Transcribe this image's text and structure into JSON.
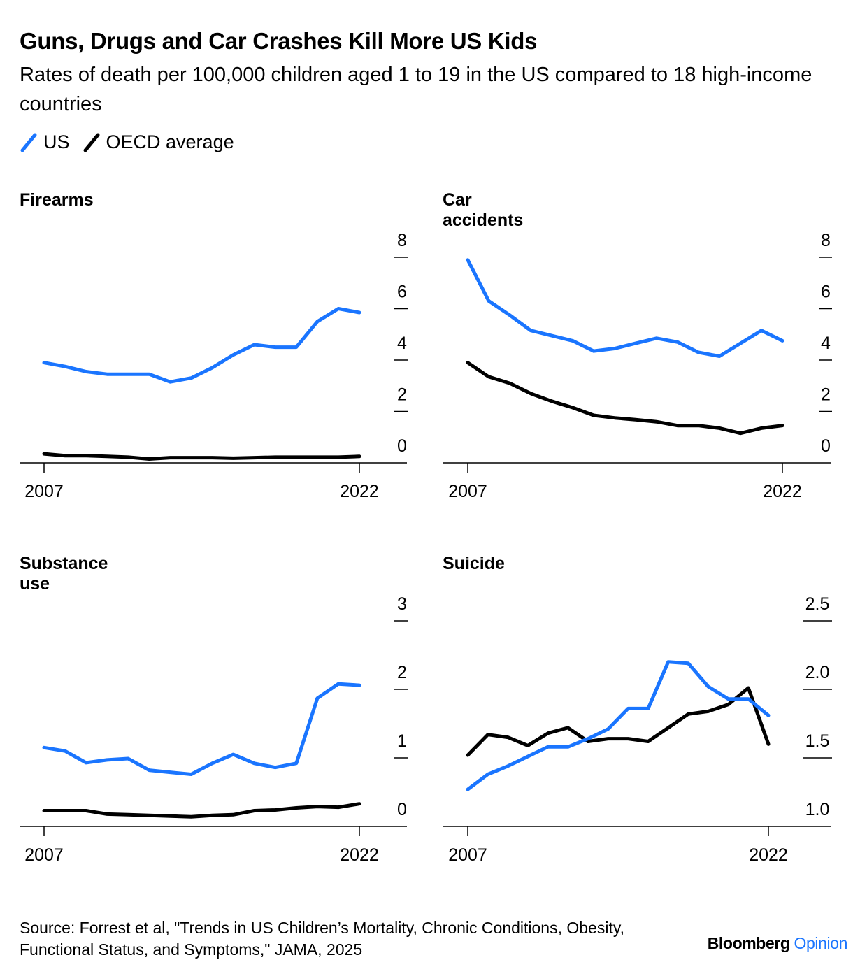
{
  "title": "Guns, Drugs and Car Crashes Kill More US Kids",
  "subtitle": "Rates of death per 100,000 children aged 1 to 19 in the US compared to 18 high-income countries",
  "legend": [
    {
      "label": "US",
      "color": "#1a75ff"
    },
    {
      "label": "OECD average",
      "color": "#000000"
    }
  ],
  "source": "Source: Forrest et al, \"Trends in US Children’s Mortality, Chronic Conditions, Obesity, Functional Status, and Symptoms,\" JAMA, 2025",
  "brand": {
    "name": "Bloomberg",
    "suffix": "Opinion"
  },
  "chart_data": [
    {
      "type": "line",
      "title": "Firearms",
      "x": [
        2007,
        2008,
        2009,
        2010,
        2011,
        2012,
        2013,
        2014,
        2015,
        2016,
        2017,
        2018,
        2019,
        2020,
        2021,
        2022
      ],
      "ylim": [
        0,
        8
      ],
      "yticks": [
        "0",
        "2",
        "4",
        "6",
        "8"
      ],
      "ytick_values": [
        0,
        2,
        4,
        6,
        8
      ],
      "xtick_labels": [
        "2007",
        "2022"
      ],
      "series": [
        {
          "name": "US",
          "color": "#1a75ff",
          "values": [
            3.9,
            3.75,
            3.55,
            3.45,
            3.45,
            3.45,
            3.15,
            3.3,
            3.7,
            4.2,
            4.6,
            4.5,
            4.5,
            5.5,
            6.0,
            5.85
          ]
        },
        {
          "name": "OECD average",
          "color": "#000000",
          "values": [
            0.35,
            0.28,
            0.28,
            0.25,
            0.22,
            0.15,
            0.2,
            0.2,
            0.2,
            0.18,
            0.2,
            0.22,
            0.22,
            0.22,
            0.22,
            0.25
          ]
        }
      ]
    },
    {
      "type": "line",
      "title": "Car accidents",
      "x": [
        2007,
        2008,
        2009,
        2010,
        2011,
        2012,
        2013,
        2014,
        2015,
        2016,
        2017,
        2018,
        2019,
        2020,
        2021,
        2022
      ],
      "ylim": [
        0,
        8
      ],
      "yticks": [
        "0",
        "2",
        "4",
        "6",
        "8"
      ],
      "ytick_values": [
        0,
        2,
        4,
        6,
        8
      ],
      "xtick_labels": [
        "2007",
        "2022"
      ],
      "series": [
        {
          "name": "US",
          "color": "#1a75ff",
          "values": [
            7.9,
            6.3,
            5.75,
            5.15,
            4.95,
            4.75,
            4.35,
            4.45,
            4.65,
            4.85,
            4.7,
            4.3,
            4.15,
            4.65,
            5.15,
            4.75
          ]
        },
        {
          "name": "OECD average",
          "color": "#000000",
          "values": [
            3.9,
            3.35,
            3.1,
            2.7,
            2.4,
            2.15,
            1.85,
            1.75,
            1.68,
            1.6,
            1.45,
            1.45,
            1.35,
            1.15,
            1.35,
            1.45
          ]
        }
      ]
    },
    {
      "type": "line",
      "title": "Substance use",
      "x": [
        2007,
        2008,
        2009,
        2010,
        2011,
        2012,
        2013,
        2014,
        2015,
        2016,
        2017,
        2018,
        2019,
        2020,
        2021,
        2022
      ],
      "ylim": [
        0,
        3
      ],
      "yticks": [
        "0",
        "1",
        "2",
        "3"
      ],
      "ytick_values": [
        0,
        1,
        2,
        3
      ],
      "xtick_labels": [
        "2007",
        "2022"
      ],
      "series": [
        {
          "name": "US",
          "color": "#1a75ff",
          "values": [
            1.15,
            1.1,
            0.93,
            0.97,
            0.99,
            0.82,
            0.79,
            0.76,
            0.92,
            1.05,
            0.92,
            0.86,
            0.92,
            1.87,
            2.08,
            2.06
          ]
        },
        {
          "name": "OECD average",
          "color": "#000000",
          "values": [
            0.23,
            0.23,
            0.23,
            0.18,
            0.17,
            0.16,
            0.15,
            0.14,
            0.16,
            0.17,
            0.23,
            0.24,
            0.27,
            0.29,
            0.28,
            0.33
          ]
        }
      ]
    },
    {
      "type": "line",
      "title": "Suicide",
      "x": [
        2007,
        2008,
        2009,
        2010,
        2011,
        2012,
        2013,
        2014,
        2015,
        2016,
        2017,
        2018,
        2019,
        2020,
        2021,
        2022
      ],
      "ylim": [
        1.0,
        2.5
      ],
      "yticks": [
        "1.0",
        "1.5",
        "2.0",
        "2.5"
      ],
      "ytick_values": [
        1.0,
        1.5,
        2.0,
        2.5
      ],
      "xtick_labels": [
        "2007",
        "2022"
      ],
      "series": [
        {
          "name": "US",
          "color": "#1a75ff",
          "values": [
            1.27,
            1.38,
            1.44,
            1.51,
            1.58,
            1.58,
            1.64,
            1.71,
            1.86,
            1.86,
            2.2,
            2.19,
            2.02,
            1.93,
            1.93,
            1.81
          ]
        },
        {
          "name": "OECD average",
          "color": "#000000",
          "values": [
            1.52,
            1.67,
            1.65,
            1.59,
            1.68,
            1.72,
            1.62,
            1.64,
            1.64,
            1.62,
            1.72,
            1.82,
            1.84,
            1.89,
            2.01,
            1.6
          ]
        }
      ]
    }
  ]
}
